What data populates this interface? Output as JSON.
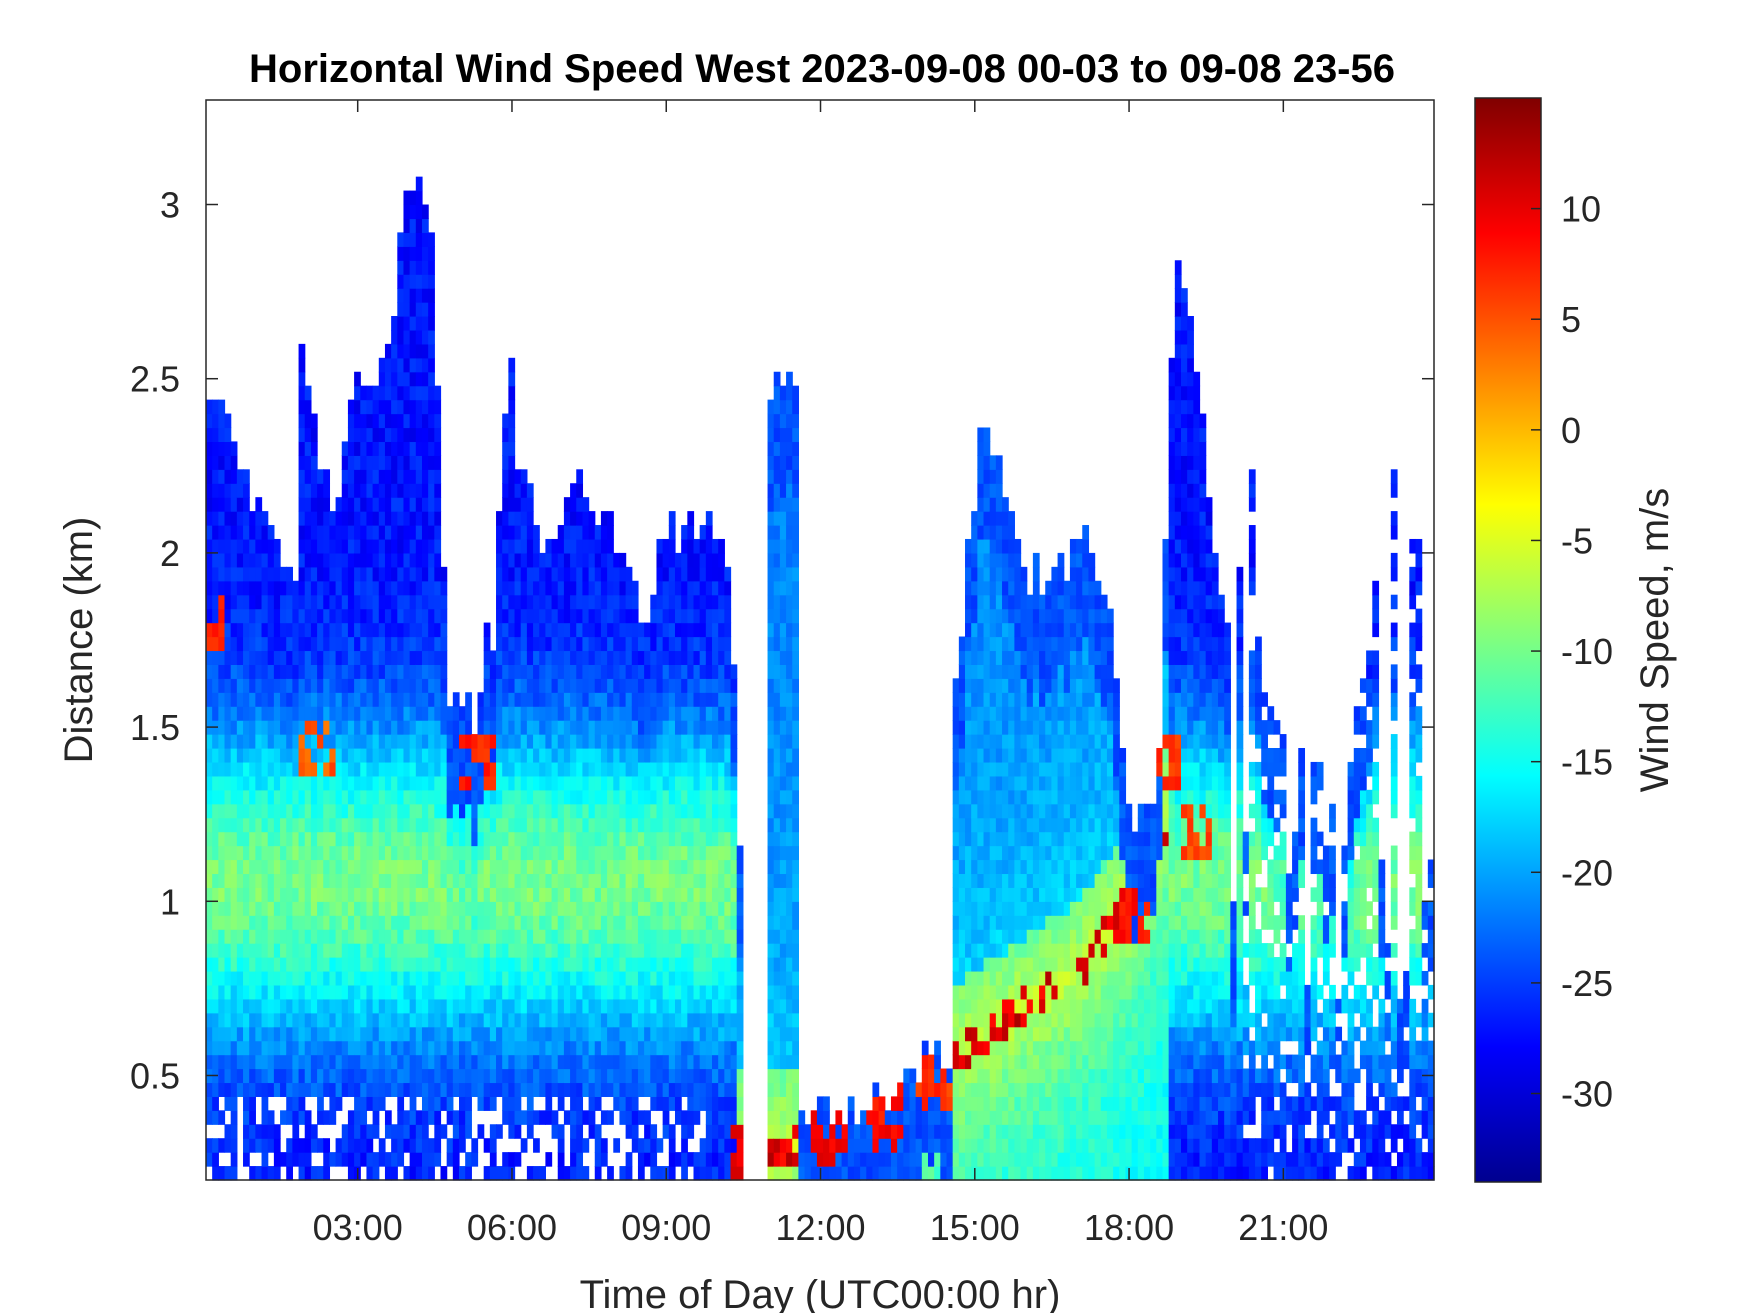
{
  "chart_data": {
    "type": "heatmap",
    "title": "Horizontal Wind Speed West 2023-09-08 00-03 to 09-08 23-56",
    "xlabel": "Time of Day (UTC00:00 hr)",
    "ylabel": "Distance (km)",
    "colorbar_label": "Wind Speed, m/s",
    "xlim_hours": [
      0.05,
      23.93
    ],
    "ylim_km": [
      0.2,
      3.3
    ],
    "clim": [
      -34,
      15
    ],
    "x_ticks": [
      {
        "value": 3,
        "label": "03:00"
      },
      {
        "value": 6,
        "label": "06:00"
      },
      {
        "value": 9,
        "label": "09:00"
      },
      {
        "value": 12,
        "label": "12:00"
      },
      {
        "value": 15,
        "label": "15:00"
      },
      {
        "value": 18,
        "label": "18:00"
      },
      {
        "value": 21,
        "label": "21:00"
      }
    ],
    "y_ticks": [
      {
        "value": 0.5,
        "label": "0.5"
      },
      {
        "value": 1,
        "label": "1"
      },
      {
        "value": 1.5,
        "label": "1.5"
      },
      {
        "value": 2,
        "label": "2"
      },
      {
        "value": 2.5,
        "label": "2.5"
      },
      {
        "value": 3,
        "label": "3"
      }
    ],
    "colorbar_ticks": [
      {
        "value": 10,
        "label": "10"
      },
      {
        "value": 5,
        "label": "5"
      },
      {
        "value": 0,
        "label": "0"
      },
      {
        "value": -5,
        "label": "-5"
      },
      {
        "value": -10,
        "label": "-10"
      },
      {
        "value": -15,
        "label": "-15"
      },
      {
        "value": -20,
        "label": "-20"
      },
      {
        "value": -25,
        "label": "-25"
      },
      {
        "value": -30,
        "label": "-30"
      }
    ],
    "colormap": "jet",
    "grid": false,
    "data_top_km": [
      [
        0.0,
        1.85
      ],
      [
        0.1,
        2.4
      ],
      [
        0.3,
        2.45
      ],
      [
        0.5,
        2.35
      ],
      [
        0.8,
        2.25
      ],
      [
        1.2,
        2.05
      ],
      [
        1.6,
        1.95
      ],
      [
        1.8,
        1.85
      ],
      [
        1.9,
        2.6
      ],
      [
        2.05,
        2.45
      ],
      [
        2.3,
        2.25
      ],
      [
        2.6,
        2.05
      ],
      [
        2.75,
        2.3
      ],
      [
        3.0,
        2.45
      ],
      [
        3.4,
        2.5
      ],
      [
        3.7,
        2.65
      ],
      [
        3.9,
        2.95
      ],
      [
        4.1,
        3.0
      ],
      [
        4.4,
        3.0
      ],
      [
        4.55,
        2.5
      ],
      [
        4.75,
        1.6
      ],
      [
        5.05,
        1.55
      ],
      [
        5.3,
        1.5
      ],
      [
        5.45,
        1.7
      ],
      [
        5.7,
        2.05
      ],
      [
        5.95,
        2.6
      ],
      [
        6.15,
        2.6
      ],
      [
        6.35,
        2.2
      ],
      [
        6.55,
        1.95
      ],
      [
        6.9,
        2.1
      ],
      [
        7.2,
        2.2
      ],
      [
        7.6,
        2.15
      ],
      [
        8.0,
        2.05
      ],
      [
        8.3,
        1.95
      ],
      [
        8.55,
        1.75
      ],
      [
        8.8,
        1.95
      ],
      [
        9.2,
        2.05
      ],
      [
        9.5,
        2.1
      ],
      [
        9.8,
        2.05
      ],
      [
        10.15,
        2.0
      ],
      [
        10.4,
        1.4
      ],
      [
        10.45,
        1.0
      ]
    ],
    "data_low_km": [
      [
        4.6,
        1.0
      ],
      [
        4.7,
        1.45
      ],
      [
        5.4,
        1.35
      ],
      [
        6.1,
        2.1
      ],
      [
        9.3,
        2.1
      ]
    ],
    "data_narrow_segment": {
      "x": [
        10.95,
        11.6
      ],
      "top_km": 2.45
    },
    "data_bottom_km": [
      [
        10.3,
        0.3
      ],
      [
        10.9,
        0.3
      ],
      [
        11.5,
        0.3
      ],
      [
        11.9,
        0.4
      ],
      [
        12.5,
        0.4
      ],
      [
        13.5,
        0.45
      ],
      [
        14.0,
        0.52
      ],
      [
        14.5,
        0.55
      ],
      [
        15.0,
        0.6
      ],
      [
        16.0,
        0.7
      ],
      [
        17.0,
        0.8
      ],
      [
        18.0,
        1.0
      ],
      [
        18.8,
        1.25
      ]
    ],
    "data_top_right_km": [
      [
        14.6,
        1.6
      ],
      [
        15.1,
        2.3
      ],
      [
        15.6,
        2.2
      ],
      [
        16.0,
        1.9
      ],
      [
        16.7,
        1.95
      ],
      [
        17.2,
        2.0
      ],
      [
        17.6,
        1.85
      ],
      [
        18.05,
        1.2
      ],
      [
        18.55,
        1.25
      ],
      [
        18.8,
        2.55
      ],
      [
        19.0,
        2.85
      ],
      [
        19.4,
        2.4
      ],
      [
        19.8,
        1.8
      ],
      [
        20.1,
        1.7
      ],
      [
        20.3,
        2.45
      ],
      [
        20.6,
        1.55
      ],
      [
        21.0,
        1.55
      ],
      [
        21.5,
        1.35
      ],
      [
        22.0,
        1.3
      ],
      [
        22.4,
        1.5
      ],
      [
        22.8,
        1.85
      ],
      [
        23.2,
        2.3
      ],
      [
        23.5,
        2.05
      ],
      [
        23.93,
        1.85
      ]
    ],
    "data_hotspots": [
      {
        "x": 10.6,
        "y": 0.27,
        "value": 12
      },
      {
        "x": 12.2,
        "y": 0.33,
        "value": 11
      },
      {
        "x": 13.2,
        "y": 0.38,
        "value": 10
      },
      {
        "x": 14.2,
        "y": 0.48,
        "value": 8
      },
      {
        "x": 18.1,
        "y": 0.95,
        "value": 10
      },
      {
        "x": 18.6,
        "y": 1.4,
        "value": 8
      },
      {
        "x": 19.3,
        "y": 1.2,
        "value": 7
      },
      {
        "x": 5.3,
        "y": 1.4,
        "value": 9
      },
      {
        "x": 2.2,
        "y": 1.45,
        "value": 6
      },
      {
        "x": 0.1,
        "y": 1.82,
        "value": 9
      }
    ]
  }
}
